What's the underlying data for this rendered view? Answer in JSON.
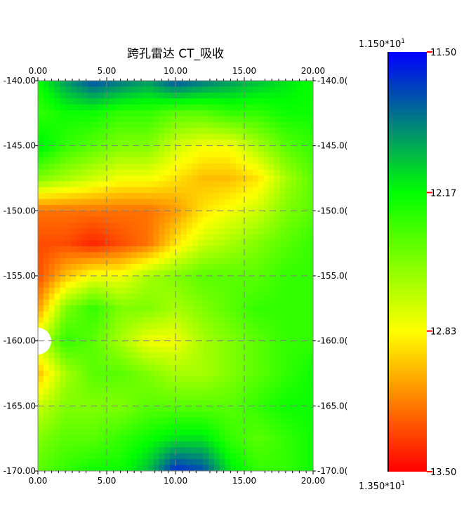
{
  "chart_data": {
    "type": "heatmap",
    "title": "跨孔雷达   CT_吸收",
    "x_ticks": [
      "0.00",
      "5.00",
      "10.00",
      "15.00",
      "20.00"
    ],
    "y_ticks_left": [
      "-140.00",
      "-145.00",
      "-150.00",
      "-155.00",
      "-160.00",
      "-165.00",
      "-170.00"
    ],
    "y_ticks_right": [
      "-140.0(",
      "-145.0(",
      "-150.0(",
      "-155.0(",
      "-160.0(",
      "-165.0(",
      "-170.0("
    ],
    "xlim": [
      0,
      20
    ],
    "ylim": [
      -170,
      -140
    ],
    "grid": true,
    "colorscale": {
      "stops": [
        {
          "value": 11.5,
          "color": "#0000ff"
        },
        {
          "value": 12.17,
          "color": "#00ff00"
        },
        {
          "value": 12.83,
          "color": "#ffff00"
        },
        {
          "value": 13.5,
          "color": "#ff0000"
        }
      ],
      "tick_labels": [
        "11.50",
        "12.17",
        "12.83",
        "13.50"
      ],
      "top_label": {
        "mantissa": "1.150*10",
        "exp": "1"
      },
      "bottom_label": {
        "mantissa": "1.350*10",
        "exp": "1"
      },
      "min": 11.5,
      "max": 13.5
    },
    "blank_region": {
      "x": 0,
      "y": -160,
      "note": "unsampled semicircle at left edge"
    },
    "x": [
      0,
      2,
      4,
      6,
      8,
      10,
      12,
      14,
      16,
      18,
      20
    ],
    "y": [
      -140,
      -142.5,
      -145,
      -147.5,
      -150,
      -152.5,
      -155,
      -157.5,
      -160,
      -162.5,
      -165,
      -167.5,
      -170
    ],
    "z": [
      [
        12.2,
        11.9,
        11.7,
        11.8,
        11.9,
        11.7,
        11.8,
        11.9,
        12.0,
        12.1,
        12.2
      ],
      [
        12.3,
        12.2,
        12.2,
        12.3,
        12.3,
        12.4,
        12.4,
        12.3,
        12.3,
        12.2,
        12.2
      ],
      [
        12.1,
        12.3,
        12.4,
        12.5,
        12.5,
        12.7,
        12.8,
        12.8,
        12.6,
        12.4,
        12.3
      ],
      [
        12.5,
        12.6,
        12.7,
        12.8,
        12.8,
        12.9,
        13.0,
        13.0,
        12.9,
        12.6,
        12.4
      ],
      [
        13.2,
        13.2,
        13.2,
        13.2,
        13.2,
        13.1,
        12.9,
        12.8,
        12.7,
        12.5,
        12.4
      ],
      [
        13.3,
        13.3,
        13.4,
        13.3,
        13.2,
        12.9,
        12.7,
        12.6,
        12.5,
        12.4,
        12.3
      ],
      [
        13.3,
        13.0,
        12.8,
        12.8,
        12.6,
        12.5,
        12.4,
        12.4,
        12.4,
        12.3,
        12.3
      ],
      [
        13.1,
        12.5,
        12.3,
        12.5,
        12.5,
        12.6,
        12.5,
        12.4,
        12.3,
        12.3,
        12.3
      ],
      [
        12.7,
        12.3,
        12.4,
        12.6,
        12.8,
        12.8,
        12.6,
        12.5,
        12.4,
        12.3,
        12.3
      ],
      [
        13.0,
        12.6,
        12.4,
        12.4,
        12.5,
        12.6,
        12.6,
        12.5,
        12.4,
        12.3,
        12.2
      ],
      [
        12.7,
        12.5,
        12.5,
        12.5,
        12.4,
        12.4,
        12.4,
        12.4,
        12.3,
        12.2,
        12.2
      ],
      [
        12.5,
        12.4,
        12.4,
        12.3,
        12.2,
        12.1,
        12.1,
        12.3,
        12.4,
        12.3,
        12.2
      ],
      [
        12.4,
        12.3,
        12.2,
        12.2,
        12.0,
        11.6,
        11.7,
        12.1,
        12.3,
        12.3,
        12.2
      ]
    ]
  }
}
